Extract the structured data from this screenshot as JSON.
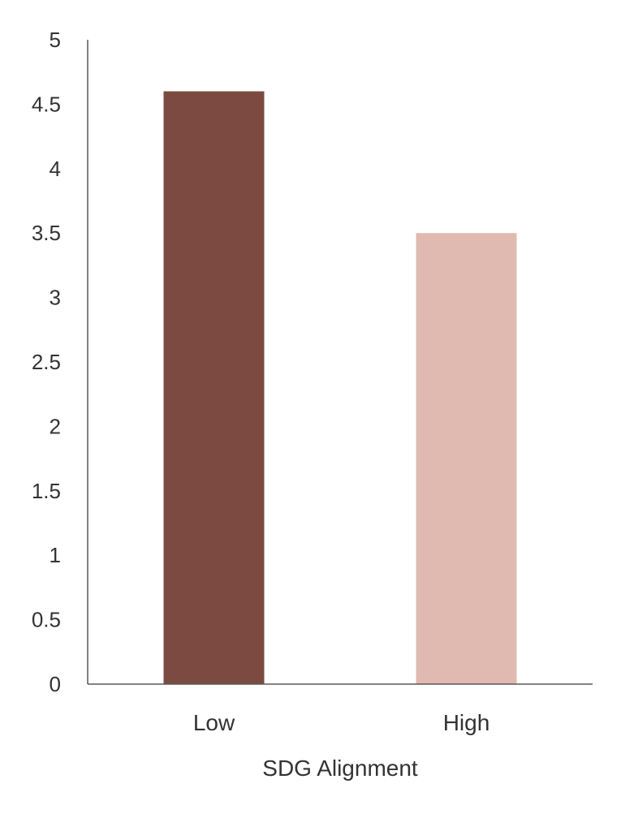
{
  "chart_data": {
    "type": "bar",
    "title": "",
    "xlabel": "SDG Alignment",
    "ylabel": "",
    "categories": [
      "Low",
      "High"
    ],
    "values": [
      4.6,
      3.5
    ],
    "bar_colors": [
      "#7d4a41",
      "#e0bab0"
    ],
    "ylim": [
      0,
      5
    ],
    "yticks": [
      "0",
      "0.5",
      "1",
      "1.5",
      "2",
      "2.5",
      "3",
      "3.5",
      "4",
      "4.5",
      "5"
    ],
    "grid": false,
    "legend": "none",
    "axis_color": "#595959"
  }
}
